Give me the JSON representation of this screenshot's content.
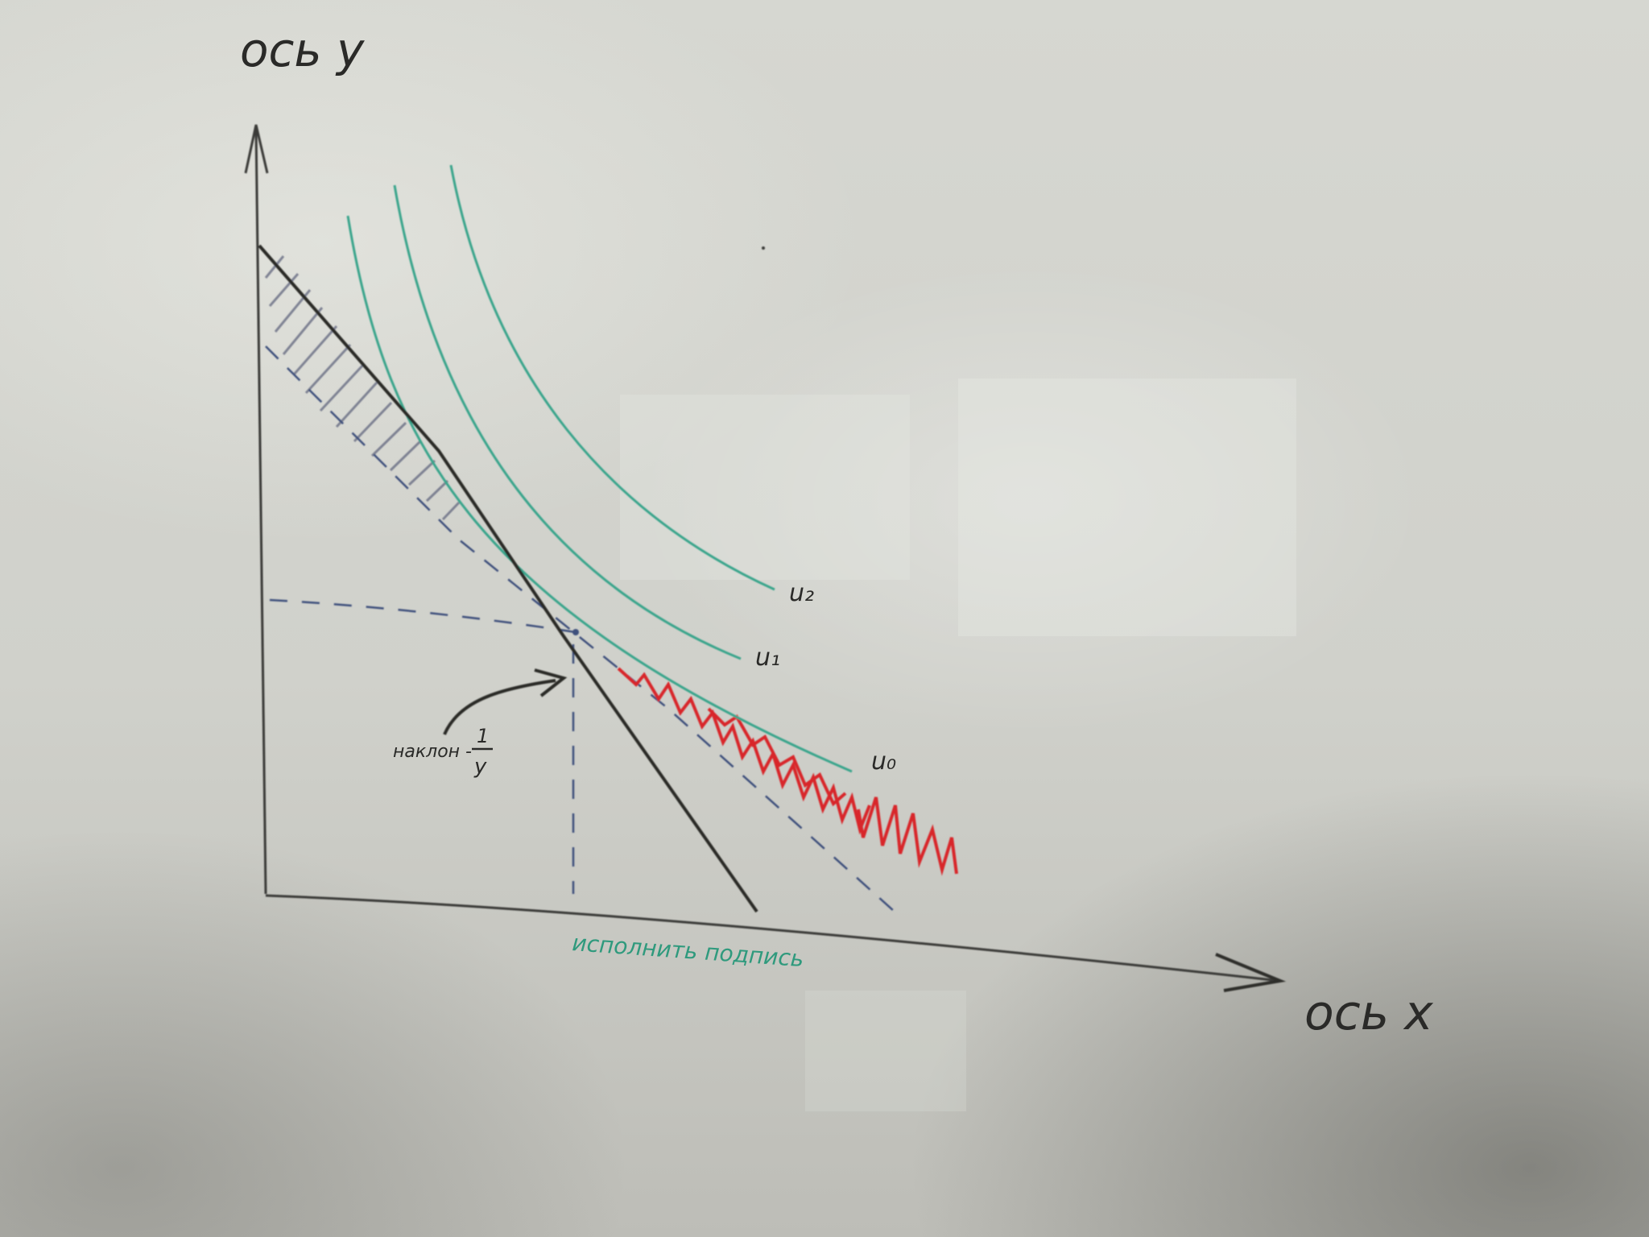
{
  "axes": {
    "y_label": "ось y",
    "x_label": "ось x"
  },
  "curves": [
    {
      "label": "u₀"
    },
    {
      "label": "u₁"
    },
    {
      "label": "u₂"
    }
  ],
  "annotations": {
    "slope_label_prefix": "наклон -",
    "slope_numerator": "1",
    "slope_denominator": "y",
    "bottom_note": "исполнить подпись"
  },
  "colors": {
    "marker_black": "#2a2a28",
    "marker_teal": "#3aa58c",
    "marker_red": "#d8262a",
    "marker_blue": "#3e4f7c",
    "hatch_gray": "#6f7488"
  }
}
